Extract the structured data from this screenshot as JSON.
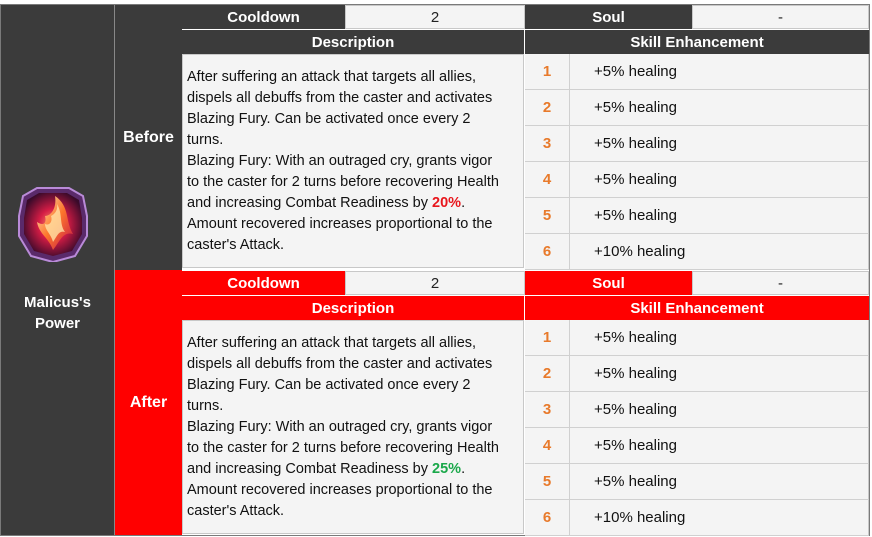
{
  "skill": {
    "name_line1": "Malicus's",
    "name_line2": "Power",
    "icon": "fire-claw-icon"
  },
  "labels": {
    "cooldown": "Cooldown",
    "soul": "Soul",
    "description": "Description",
    "skill_enhancement": "Skill Enhancement"
  },
  "before": {
    "label": "Before",
    "cooldown": "2",
    "soul": "-",
    "desc_lines": [
      "After suffering an attack that targets all allies,",
      "dispels all debuffs from the caster and activates",
      "Blazing Fury. Can be activated once every 2",
      "turns.",
      "Blazing Fury: With an outraged cry, grants vigor",
      "to the caster for 2 turns before recovering Health",
      "and increasing Combat Readiness by ",
      "Amount recovered increases proportional to the",
      "caster's Attack."
    ],
    "readiness_value": "20%",
    "enhancements": [
      {
        "num": "1",
        "text": "+5% healing"
      },
      {
        "num": "2",
        "text": "+5% healing"
      },
      {
        "num": "3",
        "text": "+5% healing"
      },
      {
        "num": "4",
        "text": "+5% healing"
      },
      {
        "num": "5",
        "text": "+5% healing"
      },
      {
        "num": "6",
        "text": "+10% healing"
      }
    ]
  },
  "after": {
    "label": "After",
    "cooldown": "2",
    "soul": "-",
    "desc_lines": [
      "After suffering an attack that targets all allies,",
      "dispels all debuffs from the caster and activates",
      "Blazing Fury. Can be activated once every 2",
      "turns.",
      "Blazing Fury: With an outraged cry, grants vigor",
      "to the caster for 2 turns before recovering Health",
      "and increasing Combat Readiness by ",
      "Amount recovered increases proportional to the",
      "caster's Attack."
    ],
    "readiness_value": "25%",
    "enhancements": [
      {
        "num": "1",
        "text": "+5% healing"
      },
      {
        "num": "2",
        "text": "+5% healing"
      },
      {
        "num": "3",
        "text": "+5% healing"
      },
      {
        "num": "4",
        "text": "+5% healing"
      },
      {
        "num": "5",
        "text": "+5% healing"
      },
      {
        "num": "6",
        "text": "+10% healing"
      }
    ]
  },
  "colors": {
    "dark_header": "#3b3b3b",
    "after_red": "#ff0000",
    "before_pct": "#e8161c",
    "after_pct": "#1aa84a",
    "enh_number": "#e87a2b"
  }
}
